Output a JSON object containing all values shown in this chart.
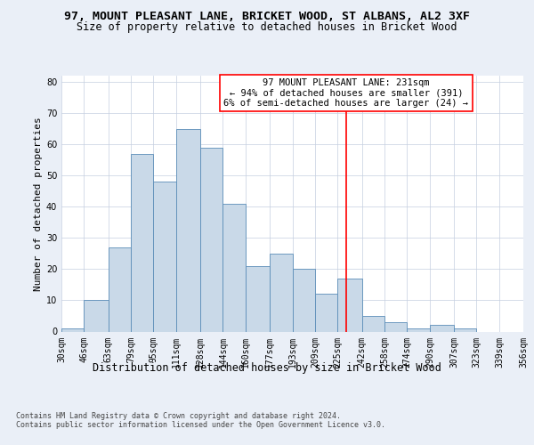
{
  "title1": "97, MOUNT PLEASANT LANE, BRICKET WOOD, ST ALBANS, AL2 3XF",
  "title2": "Size of property relative to detached houses in Bricket Wood",
  "xlabel": "Distribution of detached houses by size in Bricket Wood",
  "ylabel": "Number of detached properties",
  "footnote": "Contains HM Land Registry data © Crown copyright and database right 2024.\nContains public sector information licensed under the Open Government Licence v3.0.",
  "bin_edges": [
    30,
    46,
    63,
    79,
    95,
    111,
    128,
    144,
    160,
    177,
    193,
    209,
    225,
    242,
    258,
    274,
    290,
    307,
    323,
    339,
    356
  ],
  "bar_heights": [
    1,
    10,
    27,
    57,
    48,
    65,
    59,
    41,
    21,
    25,
    20,
    12,
    17,
    5,
    3,
    1,
    2,
    1,
    0,
    0
  ],
  "bar_color": "#c9d9e8",
  "bar_edge_color": "#5b8db8",
  "vline_x": 231,
  "vline_color": "red",
  "annotation_text": "97 MOUNT PLEASANT LANE: 231sqm\n← 94% of detached houses are smaller (391)\n6% of semi-detached houses are larger (24) →",
  "ylim": [
    0,
    82
  ],
  "bg_color": "#eaeff7",
  "plot_bg": "#ffffff",
  "title1_fontsize": 9.5,
  "title2_fontsize": 8.5,
  "xlabel_fontsize": 8.5,
  "ylabel_fontsize": 8,
  "tick_fontsize": 7,
  "annotation_fontsize": 7.5,
  "footnote_fontsize": 6
}
